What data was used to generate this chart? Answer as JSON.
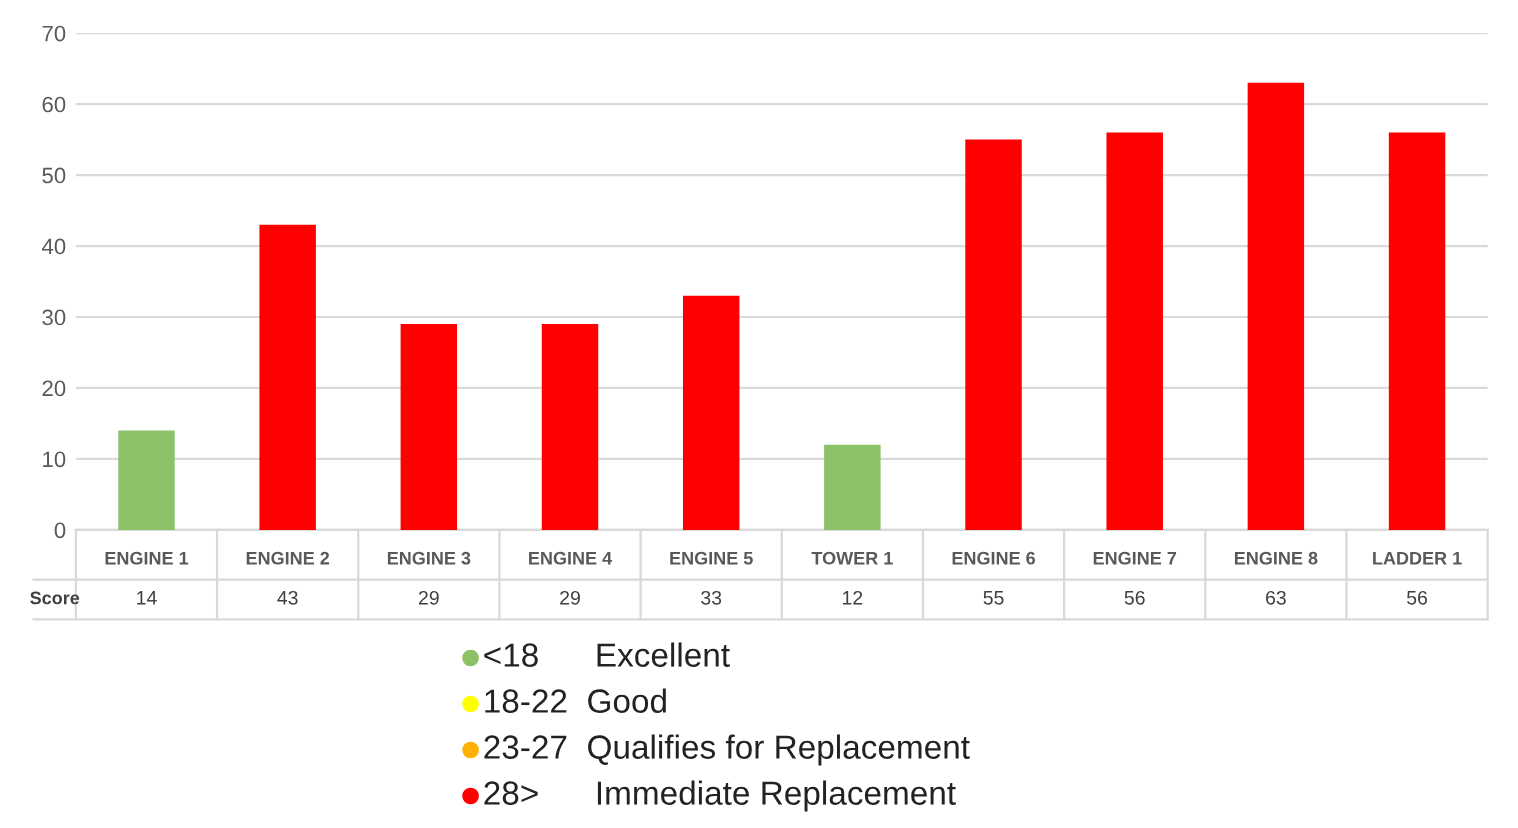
{
  "chart_data": {
    "type": "bar",
    "categories": [
      "ENGINE 1",
      "ENGINE 2",
      "ENGINE 3",
      "ENGINE 4",
      "ENGINE 5",
      "TOWER 1",
      "ENGINE 6",
      "ENGINE 7",
      "ENGINE 8",
      "LADDER 1"
    ],
    "values": [
      14,
      43,
      29,
      29,
      33,
      12,
      55,
      56,
      63,
      56
    ],
    "colors": [
      "#8cc168",
      "#ff0000",
      "#ff0000",
      "#ff0000",
      "#ff0000",
      "#8cc168",
      "#ff0000",
      "#ff0000",
      "#ff0000",
      "#ff0000"
    ],
    "ylim": [
      0,
      70
    ],
    "yticks": [
      0,
      10,
      20,
      30,
      40,
      50,
      60,
      70
    ],
    "grid": "y",
    "data_labels": true,
    "annotations": [
      "Score",
      "<18      Excellent",
      "18-22  Good",
      "23-27  Qualifies for Replacement",
      "28>      Immediate Replacement"
    ]
  }
}
